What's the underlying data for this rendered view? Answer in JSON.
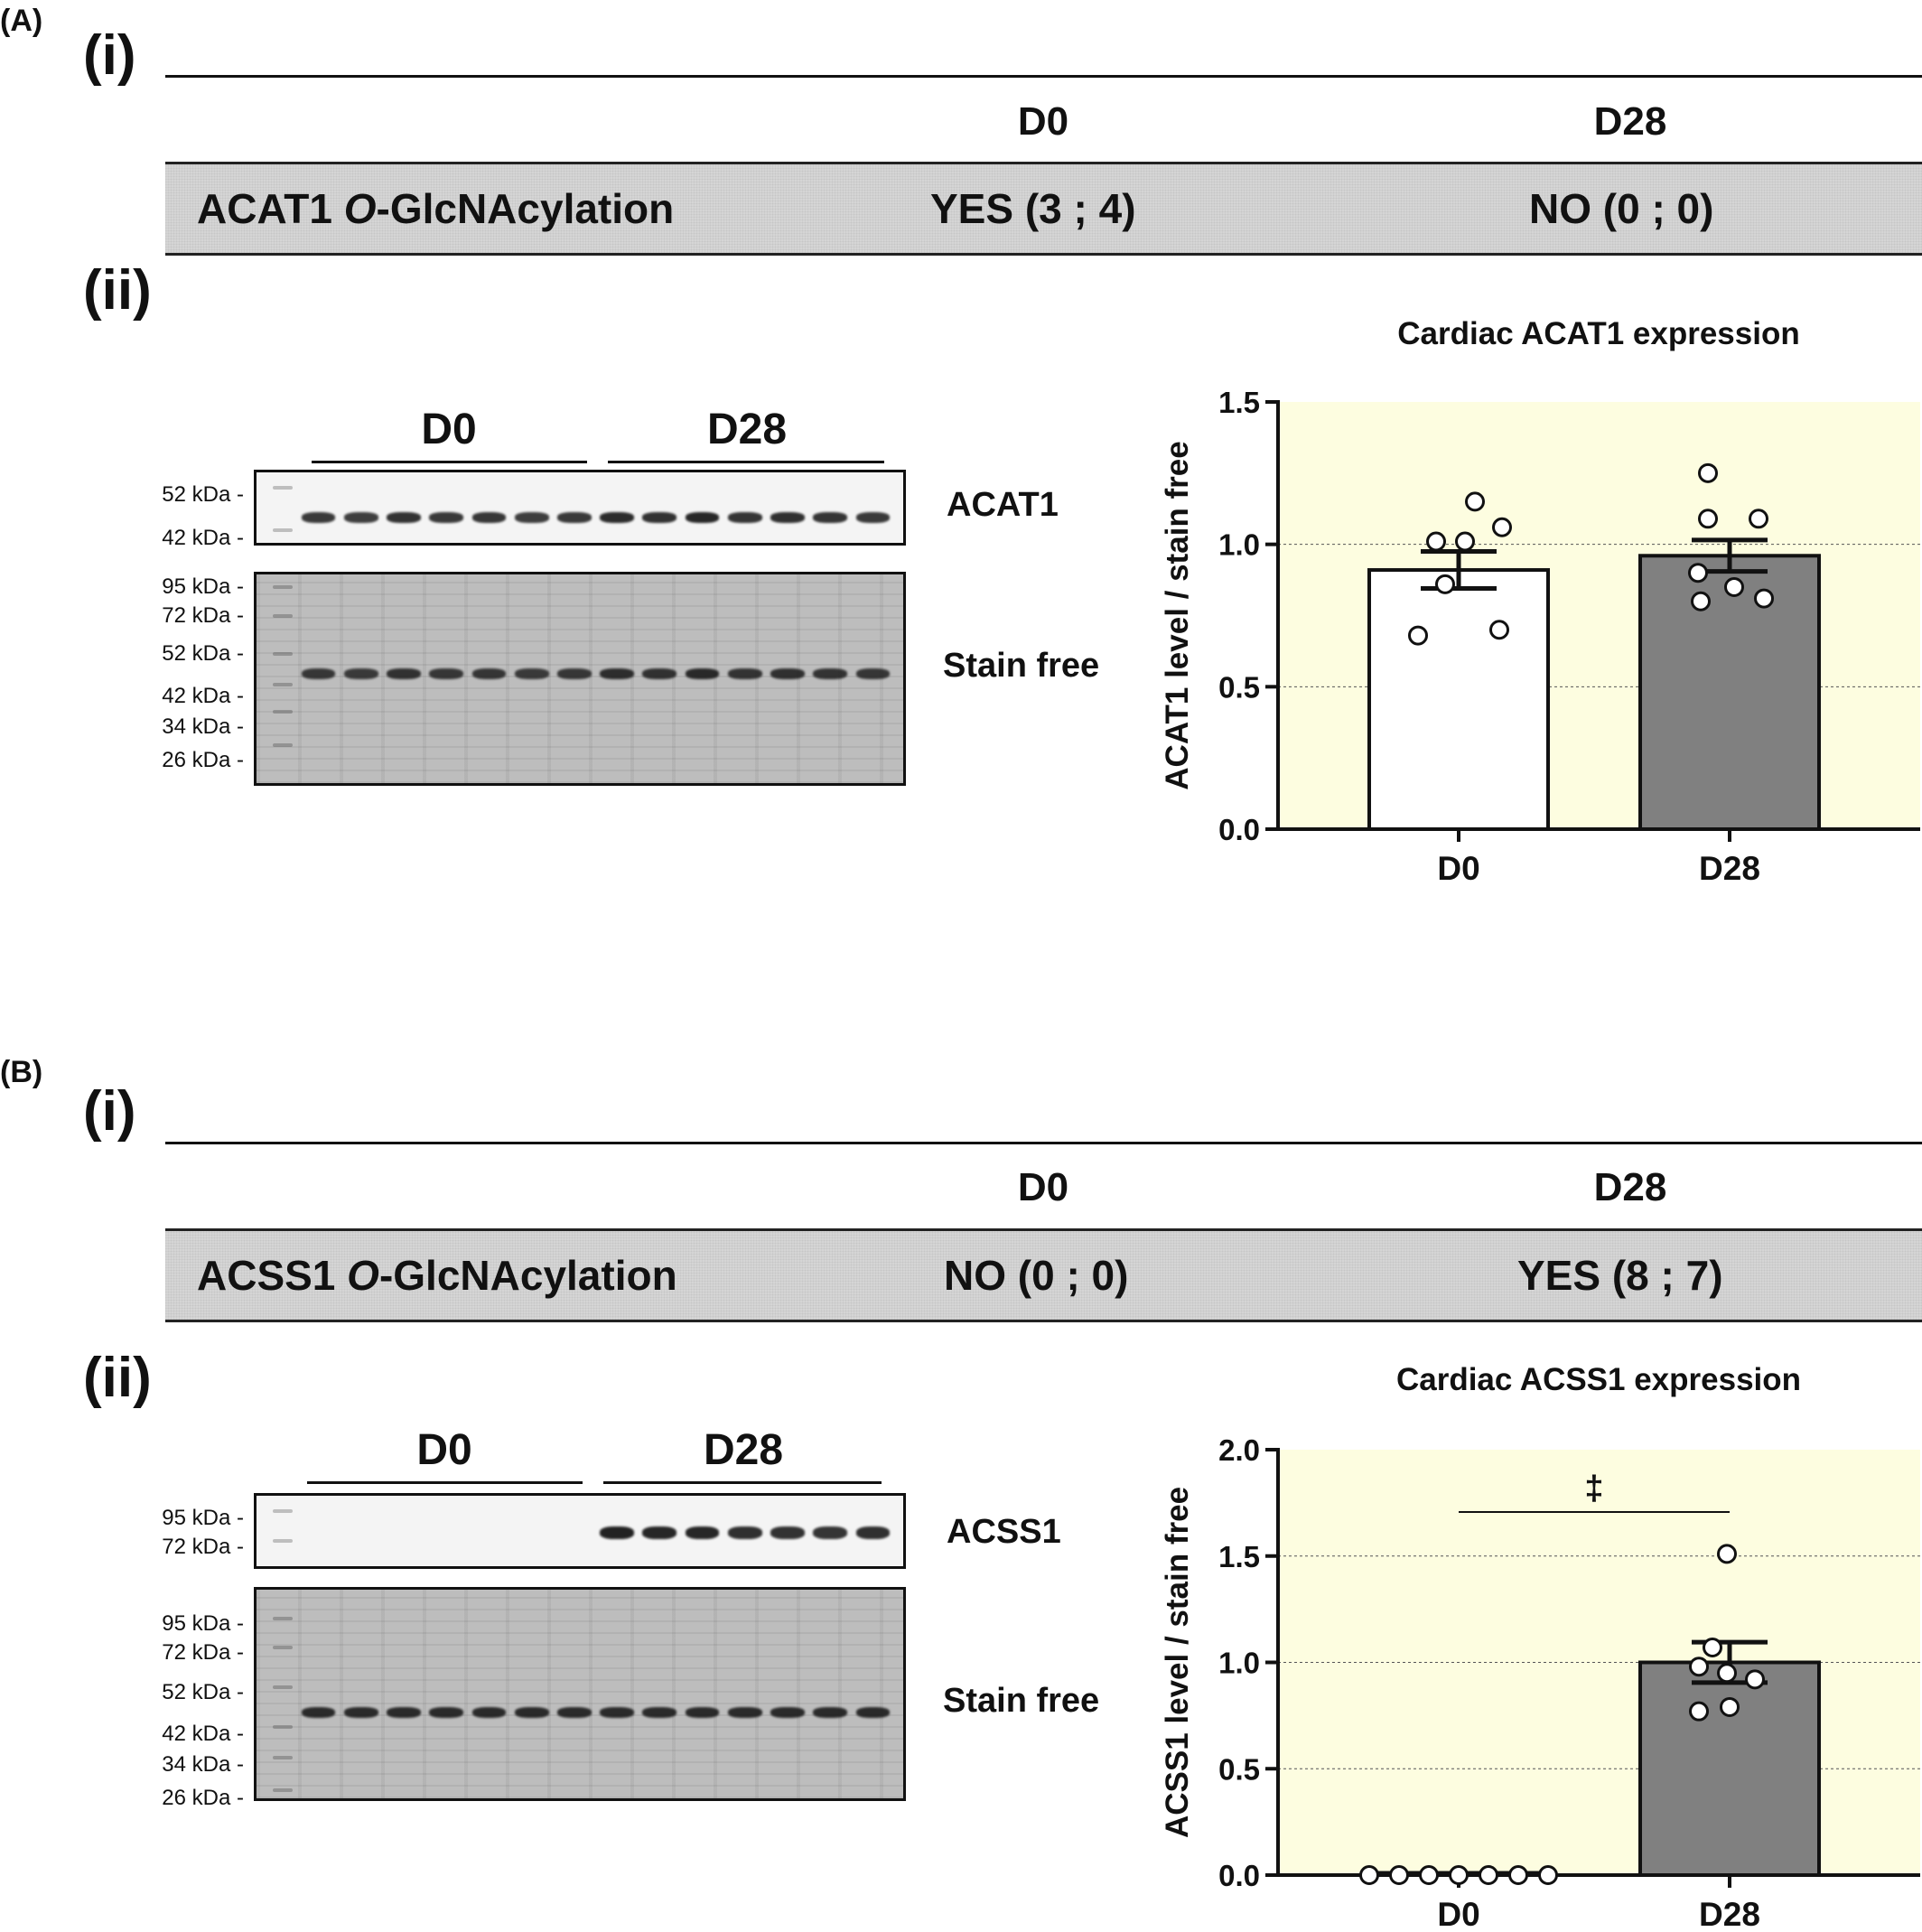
{
  "panel_a": {
    "tag": "(A)",
    "part_i": "(i)",
    "part_ii": "(ii)",
    "col_d0": "D0",
    "col_d28": "D28",
    "row_protein": "ACAT1 ",
    "row_mod_italic": "O",
    "row_mod_rest": "-GlcNAcylation",
    "row_d0_value": "YES (3 ; 4)",
    "row_d28_value": "NO (0 ; 0)",
    "blot": {
      "group_d0": "D0",
      "group_d28": "D28",
      "target_label": "ACAT1",
      "stain_label": "Stain free",
      "target_markers": [
        "52 kDa -",
        "42 kDa -"
      ],
      "stain_markers": [
        "95 kDa -",
        "72 kDa -",
        "52 kDa -",
        "42 kDa -",
        "34 kDa -",
        "26 kDa -"
      ],
      "band_intensity": [
        0.82,
        0.8,
        0.85,
        0.82,
        0.83,
        0.8,
        0.82,
        0.88,
        0.85,
        0.9,
        0.84,
        0.86,
        0.84,
        0.82
      ]
    },
    "chart_title": "Cardiac ACAT1 expression"
  },
  "panel_b": {
    "tag": "(B)",
    "part_i": "(i)",
    "part_ii": "(ii)",
    "col_d0": "D0",
    "col_d28": "D28",
    "row_protein": "ACSS1 ",
    "row_mod_italic": "O",
    "row_mod_rest": "-GlcNAcylation",
    "row_d0_value": "NO (0 ; 0)",
    "row_d28_value": "YES (8 ; 7)",
    "blot": {
      "group_d0": "D0",
      "group_d28": "D28",
      "target_label": "ACSS1",
      "stain_label": "Stain free",
      "target_markers": [
        "95 kDa -",
        "72 kDa -"
      ],
      "stain_markers": [
        "95 kDa -",
        "72 kDa -",
        "52 kDa -",
        "42 kDa -",
        "34 kDa -",
        "26 kDa -"
      ],
      "band_intensity": [
        0,
        0,
        0,
        0,
        0,
        0,
        0,
        0.92,
        0.9,
        0.9,
        0.86,
        0.85,
        0.84,
        0.86
      ]
    },
    "chart_title": "Cardiac ACSS1 expression"
  },
  "chart_data": [
    {
      "type": "bar",
      "title": "Cardiac ACAT1 expression",
      "ylabel": "ACAT1 level / stain free",
      "xlabel": "",
      "categories": [
        "D0",
        "D28"
      ],
      "values": [
        0.91,
        0.96
      ],
      "sem": [
        0.065,
        0.055
      ],
      "points": [
        [
          1.15,
          1.06,
          1.01,
          1.01,
          0.86,
          0.7,
          0.68
        ],
        [
          1.25,
          1.09,
          1.09,
          0.9,
          0.85,
          0.81,
          0.8
        ]
      ],
      "bar_colors": [
        "#ffffff",
        "#808080"
      ],
      "ylim": [
        0,
        1.5
      ],
      "yticks": [
        "0.0",
        "0.5",
        "1.0",
        "1.5"
      ],
      "plot_background": "#fdfde0",
      "grid": true,
      "significance": ""
    },
    {
      "type": "bar",
      "title": "Cardiac ACSS1 expression",
      "ylabel": "ACSS1 level / stain free",
      "xlabel": "",
      "categories": [
        "D0",
        "D28"
      ],
      "values": [
        0.0,
        1.0
      ],
      "sem": [
        0.0,
        0.095
      ],
      "points": [
        [
          0,
          0,
          0,
          0,
          0,
          0,
          0
        ],
        [
          1.51,
          1.07,
          0.98,
          0.95,
          0.92,
          0.79,
          0.77
        ]
      ],
      "bar_colors": [
        "#ffffff",
        "#808080"
      ],
      "ylim": [
        0,
        2.0
      ],
      "yticks": [
        "0.0",
        "0.5",
        "1.0",
        "1.5",
        "2.0"
      ],
      "plot_background": "#fdfde0",
      "grid": true,
      "significance": "‡"
    }
  ]
}
